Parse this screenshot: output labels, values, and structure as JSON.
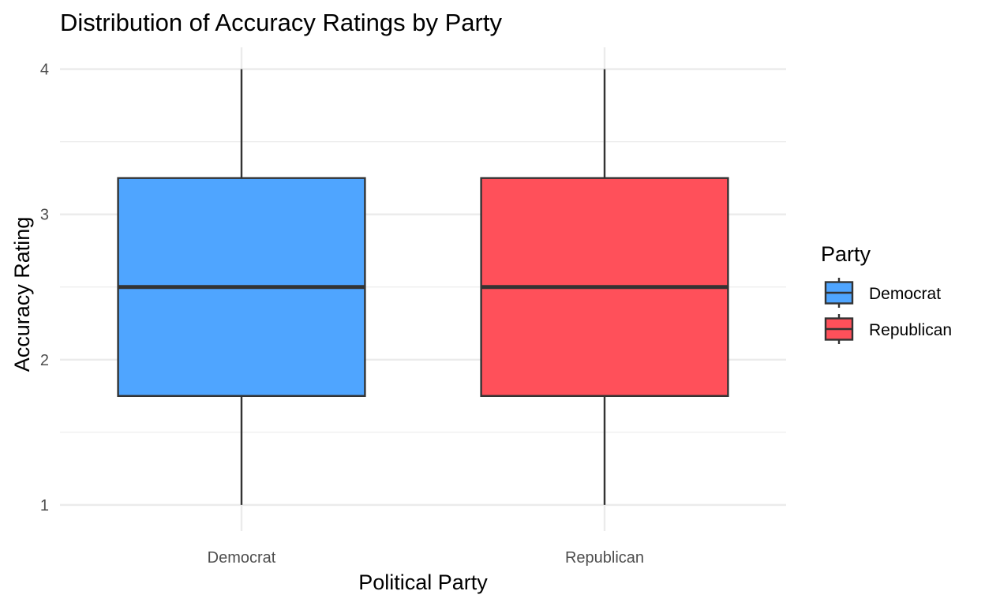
{
  "chart_data": {
    "type": "boxplot",
    "title": "Distribution of Accuracy Ratings by Party",
    "xlabel": "Political Party",
    "ylabel": "Accuracy Rating",
    "categories": [
      "Democrat",
      "Republican"
    ],
    "ylim": [
      0.82,
      4.15
    ],
    "yticks": [
      1,
      2,
      3,
      4
    ],
    "series": [
      {
        "name": "Democrat",
        "color": "#4fa5ff",
        "min": 1,
        "q1": 1.75,
        "median": 2.5,
        "q3": 3.25,
        "max": 4
      },
      {
        "name": "Republican",
        "color": "#ff505a",
        "min": 1,
        "q1": 1.75,
        "median": 2.5,
        "q3": 3.25,
        "max": 4
      }
    ],
    "legend": {
      "title": "Party",
      "position": "right",
      "items": [
        {
          "label": "Democrat",
          "color": "#4fa5ff"
        },
        {
          "label": "Republican",
          "color": "#ff505a"
        }
      ]
    },
    "grid": true,
    "box_outline_color": "#333333"
  }
}
